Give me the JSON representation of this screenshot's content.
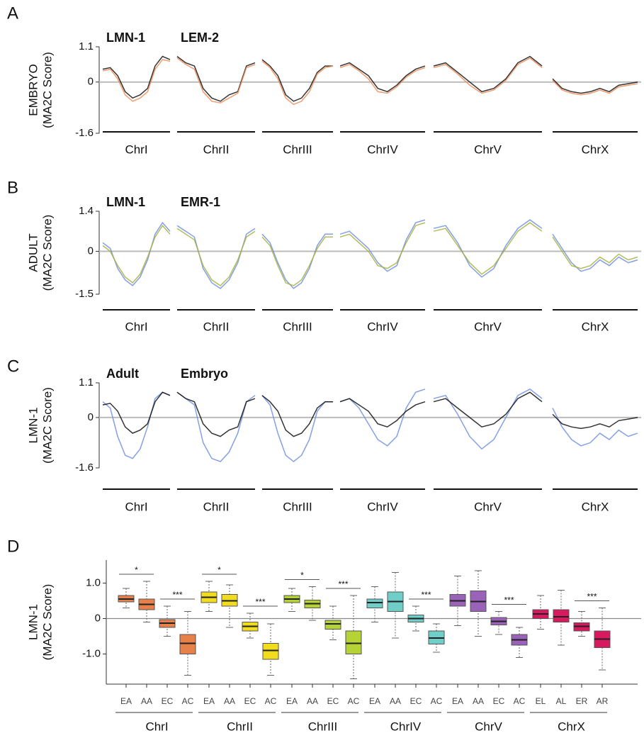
{
  "chart_data": [
    {
      "type": "line",
      "panel_label": "A",
      "ylabel": [
        "EMBRYO",
        "(MA2C Score)"
      ],
      "ylim": [
        -1.6,
        1.1
      ],
      "yticks": [
        1.1,
        0,
        -1.6
      ],
      "chromosomes": [
        "ChrI",
        "ChrII",
        "ChrIII",
        "ChrIV",
        "ChrV",
        "ChrX"
      ],
      "series": [
        {
          "name": "LMN-1",
          "color": "#111111",
          "values": [
            [
              0.4,
              0.45,
              0.2,
              -0.3,
              -0.5,
              -0.4,
              -0.2,
              0.5,
              0.8,
              0.7
            ],
            [
              0.8,
              0.6,
              0.5,
              -0.2,
              -0.5,
              -0.6,
              -0.4,
              -0.3,
              0.5,
              0.6
            ],
            [
              0.7,
              0.5,
              0.2,
              -0.4,
              -0.6,
              -0.5,
              -0.2,
              0.3,
              0.5,
              0.5
            ],
            [
              0.5,
              0.6,
              0.4,
              0.2,
              -0.2,
              -0.3,
              -0.1,
              0.2,
              0.4,
              0.5
            ],
            [
              0.5,
              0.6,
              0.3,
              0.0,
              -0.3,
              -0.2,
              0.1,
              0.6,
              0.8,
              0.5
            ],
            [
              0.1,
              -0.2,
              -0.3,
              -0.35,
              -0.3,
              -0.2,
              -0.3,
              -0.1,
              -0.05,
              0.0
            ]
          ]
        },
        {
          "name": "LEM-2",
          "color": "#f08a55",
          "values": [
            [
              0.35,
              0.4,
              0.1,
              -0.4,
              -0.6,
              -0.5,
              -0.3,
              0.4,
              0.7,
              0.65
            ],
            [
              0.75,
              0.55,
              0.4,
              -0.3,
              -0.6,
              -0.65,
              -0.5,
              -0.35,
              0.45,
              0.55
            ],
            [
              0.65,
              0.45,
              0.1,
              -0.5,
              -0.7,
              -0.6,
              -0.3,
              0.25,
              0.45,
              0.5
            ],
            [
              0.45,
              0.55,
              0.35,
              0.1,
              -0.3,
              -0.35,
              -0.15,
              0.15,
              0.35,
              0.45
            ],
            [
              0.45,
              0.55,
              0.25,
              -0.1,
              -0.35,
              -0.25,
              0.05,
              0.55,
              0.75,
              0.45
            ],
            [
              0.05,
              -0.25,
              -0.35,
              -0.4,
              -0.35,
              -0.25,
              -0.35,
              -0.15,
              -0.1,
              -0.05
            ]
          ]
        }
      ]
    },
    {
      "type": "line",
      "panel_label": "B",
      "ylabel": [
        "ADULT",
        "(MA2C Score)"
      ],
      "ylim": [
        -1.5,
        1.4
      ],
      "yticks": [
        1.4,
        0,
        -1.5
      ],
      "chromosomes": [
        "ChrI",
        "ChrII",
        "ChrIII",
        "ChrIV",
        "ChrV",
        "ChrX"
      ],
      "series": [
        {
          "name": "LMN-1",
          "color": "#6f8fe0",
          "values": [
            [
              0.3,
              0.1,
              -0.6,
              -1.0,
              -1.2,
              -0.9,
              -0.3,
              0.6,
              1.0,
              0.7
            ],
            [
              0.9,
              0.7,
              0.5,
              -0.6,
              -1.1,
              -1.3,
              -1.0,
              -0.4,
              0.6,
              0.8
            ],
            [
              0.6,
              0.3,
              -0.4,
              -1.0,
              -1.3,
              -1.1,
              -0.6,
              0.2,
              0.6,
              0.6
            ],
            [
              0.6,
              0.7,
              0.4,
              0.1,
              -0.4,
              -0.7,
              -0.5,
              0.4,
              1.0,
              1.1
            ],
            [
              0.8,
              0.9,
              0.3,
              -0.5,
              -0.9,
              -0.6,
              0.2,
              0.8,
              1.1,
              0.8
            ],
            [
              0.6,
              0.1,
              -0.4,
              -0.7,
              -0.6,
              -0.3,
              -0.5,
              -0.2,
              -0.4,
              -0.3
            ]
          ]
        },
        {
          "name": "EMR-1",
          "color": "#a8b03c",
          "values": [
            [
              0.2,
              0.0,
              -0.5,
              -0.9,
              -1.1,
              -0.8,
              -0.2,
              0.5,
              0.9,
              0.6
            ],
            [
              0.8,
              0.6,
              0.4,
              -0.5,
              -1.0,
              -1.2,
              -0.9,
              -0.3,
              0.5,
              0.7
            ],
            [
              0.5,
              0.2,
              -0.5,
              -1.1,
              -1.2,
              -1.0,
              -0.5,
              0.1,
              0.5,
              0.5
            ],
            [
              0.5,
              0.6,
              0.3,
              0.0,
              -0.5,
              -0.6,
              -0.4,
              0.3,
              0.9,
              1.0
            ],
            [
              0.7,
              0.8,
              0.2,
              -0.4,
              -0.8,
              -0.5,
              0.1,
              0.7,
              1.0,
              0.7
            ],
            [
              0.5,
              0.0,
              -0.5,
              -0.6,
              -0.5,
              -0.2,
              -0.4,
              -0.1,
              -0.3,
              -0.2
            ]
          ]
        }
      ]
    },
    {
      "type": "line",
      "panel_label": "C",
      "ylabel": [
        "LMN-1",
        "(MA2C Score)"
      ],
      "ylim": [
        -1.6,
        1.1
      ],
      "yticks": [
        1.1,
        0,
        -1.6
      ],
      "chromosomes": [
        "ChrI",
        "ChrII",
        "ChrIII",
        "ChrIV",
        "ChrV",
        "ChrX"
      ],
      "series": [
        {
          "name": "Adult",
          "color": "#6f8fe0",
          "values": [
            [
              0.5,
              0.3,
              -0.6,
              -1.2,
              -1.3,
              -1.0,
              -0.3,
              0.6,
              0.8,
              0.7
            ],
            [
              0.8,
              0.6,
              0.4,
              -0.8,
              -1.3,
              -1.4,
              -1.1,
              -0.5,
              0.5,
              0.7
            ],
            [
              0.7,
              0.4,
              -0.5,
              -1.2,
              -1.4,
              -1.2,
              -0.7,
              0.2,
              0.5,
              0.5
            ],
            [
              0.5,
              0.6,
              0.3,
              -0.2,
              -0.7,
              -0.9,
              -0.6,
              0.3,
              0.8,
              0.9
            ],
            [
              0.6,
              0.7,
              0.1,
              -0.6,
              -1.0,
              -0.7,
              0.0,
              0.7,
              0.9,
              0.6
            ],
            [
              0.3,
              -0.3,
              -0.7,
              -0.9,
              -0.8,
              -0.5,
              -0.7,
              -0.4,
              -0.6,
              -0.5
            ]
          ]
        },
        {
          "name": "Embryo",
          "color": "#111111",
          "values": [
            [
              0.4,
              0.45,
              0.2,
              -0.3,
              -0.5,
              -0.4,
              -0.2,
              0.5,
              0.8,
              0.7
            ],
            [
              0.8,
              0.6,
              0.5,
              -0.2,
              -0.5,
              -0.6,
              -0.4,
              -0.3,
              0.5,
              0.6
            ],
            [
              0.7,
              0.5,
              0.2,
              -0.4,
              -0.6,
              -0.5,
              -0.2,
              0.3,
              0.5,
              0.5
            ],
            [
              0.5,
              0.6,
              0.4,
              0.2,
              -0.2,
              -0.3,
              -0.1,
              0.2,
              0.4,
              0.5
            ],
            [
              0.5,
              0.6,
              0.3,
              0.0,
              -0.3,
              -0.2,
              0.1,
              0.6,
              0.8,
              0.5
            ],
            [
              0.1,
              -0.2,
              -0.3,
              -0.35,
              -0.3,
              -0.2,
              -0.3,
              -0.1,
              -0.05,
              0.0
            ]
          ]
        }
      ]
    },
    {
      "type": "box",
      "panel_label": "D",
      "ylabel": [
        "LMN-1",
        "(MA2C Score)"
      ],
      "ylim": [
        -1.85,
        1.65
      ],
      "yticks": [
        {
          "value": 1,
          "label": "1.0"
        },
        0,
        {
          "value": -1,
          "label": "-1.0"
        }
      ],
      "groups": [
        {
          "name": "ChrI",
          "color": "#e8804a",
          "categories": [
            "EA",
            "AA",
            "EC",
            "AC"
          ],
          "significance": [
            "*",
            "***"
          ],
          "boxes": [
            {
              "min": 0.3,
              "q1": 0.47,
              "median": 0.55,
              "q3": 0.65,
              "max": 0.85
            },
            {
              "min": -0.1,
              "q1": 0.25,
              "median": 0.4,
              "q3": 0.55,
              "max": 1.05
            },
            {
              "min": -0.5,
              "q1": -0.25,
              "median": -0.13,
              "q3": -0.03,
              "max": 0.35
            },
            {
              "min": -1.6,
              "q1": -1.0,
              "median": -0.7,
              "q3": -0.45,
              "max": 0.2
            }
          ]
        },
        {
          "name": "ChrII",
          "color": "#f2dc1e",
          "categories": [
            "EA",
            "AA",
            "EC",
            "AC"
          ],
          "significance": [
            "*",
            "***"
          ],
          "boxes": [
            {
              "min": 0.2,
              "q1": 0.45,
              "median": 0.6,
              "q3": 0.75,
              "max": 1.05
            },
            {
              "min": -0.25,
              "q1": 0.35,
              "median": 0.5,
              "q3": 0.68,
              "max": 0.95
            },
            {
              "min": -0.55,
              "q1": -0.35,
              "median": -0.22,
              "q3": -0.1,
              "max": 0.15
            },
            {
              "min": -1.6,
              "q1": -1.15,
              "median": -0.9,
              "q3": -0.7,
              "max": -0.15
            }
          ]
        },
        {
          "name": "ChrIII",
          "color": "#b5d334",
          "categories": [
            "EA",
            "AA",
            "EC",
            "AC"
          ],
          "significance": [
            "*",
            "***"
          ],
          "boxes": [
            {
              "min": 0.2,
              "q1": 0.45,
              "median": 0.55,
              "q3": 0.65,
              "max": 0.85
            },
            {
              "min": -0.05,
              "q1": 0.3,
              "median": 0.42,
              "q3": 0.52,
              "max": 0.9
            },
            {
              "min": -0.6,
              "q1": -0.3,
              "median": -0.15,
              "q3": -0.05,
              "max": 0.35
            },
            {
              "min": -1.7,
              "q1": -1.0,
              "median": -0.7,
              "q3": -0.35,
              "max": 0.65
            }
          ]
        },
        {
          "name": "ChrIV",
          "color": "#6fcfc8",
          "categories": [
            "EA",
            "AA",
            "EC",
            "AC"
          ],
          "significance": [
            "***"
          ],
          "boxes": [
            {
              "min": -0.1,
              "q1": 0.3,
              "median": 0.45,
              "q3": 0.55,
              "max": 0.9
            },
            {
              "min": -0.55,
              "q1": 0.2,
              "median": 0.48,
              "q3": 0.75,
              "max": 1.3
            },
            {
              "min": -0.35,
              "q1": -0.1,
              "median": 0.0,
              "q3": 0.1,
              "max": 0.35
            },
            {
              "min": -0.95,
              "q1": -0.72,
              "median": -0.55,
              "q3": -0.35,
              "max": -0.15
            }
          ]
        },
        {
          "name": "ChrV",
          "color": "#9a62b8",
          "categories": [
            "EA",
            "AA",
            "EC",
            "AC"
          ],
          "significance": [
            "***"
          ],
          "boxes": [
            {
              "min": -0.2,
              "q1": 0.35,
              "median": 0.5,
              "q3": 0.68,
              "max": 1.2
            },
            {
              "min": -0.5,
              "q1": 0.2,
              "median": 0.48,
              "q3": 0.78,
              "max": 1.35
            },
            {
              "min": -0.45,
              "q1": -0.18,
              "median": -0.08,
              "q3": 0.03,
              "max": 0.2
            },
            {
              "min": -1.1,
              "q1": -0.75,
              "median": -0.6,
              "q3": -0.45,
              "max": -0.25
            }
          ]
        },
        {
          "name": "ChrX",
          "color": "#d8185f",
          "categories": [
            "EL",
            "AL",
            "ER",
            "AR"
          ],
          "significance": [
            "***"
          ],
          "boxes": [
            {
              "min": -0.3,
              "q1": 0.0,
              "median": 0.13,
              "q3": 0.25,
              "max": 0.65
            },
            {
              "min": -0.75,
              "q1": -0.1,
              "median": 0.05,
              "q3": 0.25,
              "max": 0.8
            },
            {
              "min": -0.5,
              "q1": -0.35,
              "median": -0.22,
              "q3": -0.12,
              "max": 0.2
            },
            {
              "min": -1.45,
              "q1": -0.82,
              "median": -0.58,
              "q3": -0.35,
              "max": 0.3
            }
          ]
        }
      ]
    }
  ]
}
